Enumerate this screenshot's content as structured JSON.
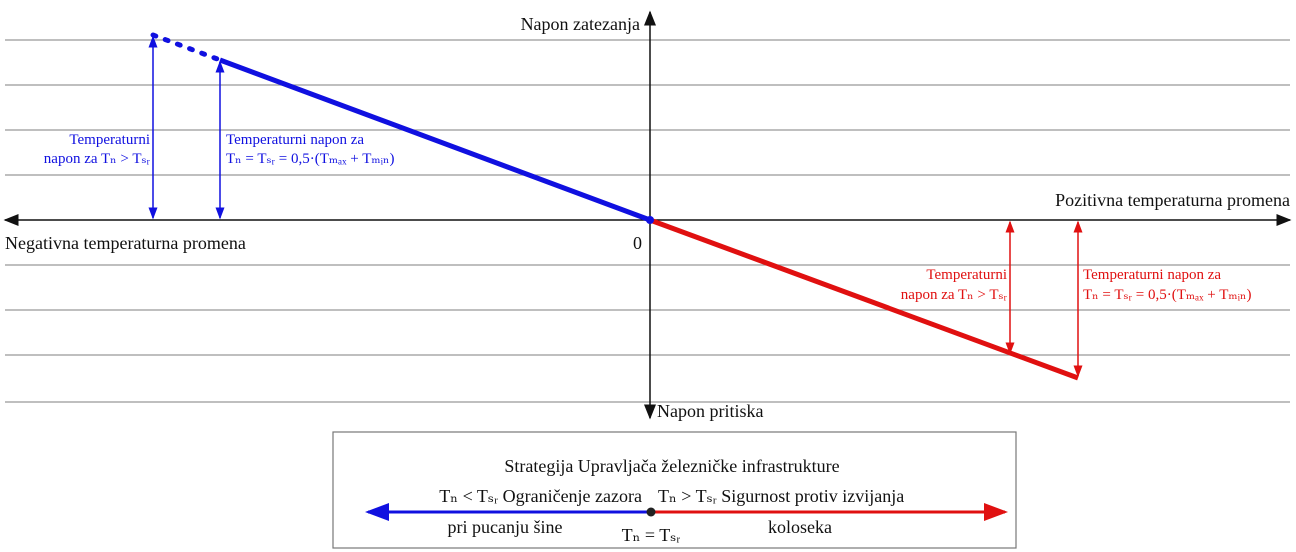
{
  "axes": {
    "y_top": "Napon zatezanja",
    "y_bottom": "Napon pritiska",
    "x_right": "Pozitivna temperaturna promena",
    "x_left": "Negativna temperaturna promena",
    "origin": "0"
  },
  "blue_labels": {
    "left": [
      "Temperaturni",
      "napon za Tₙ > Tₛᵣ"
    ],
    "right": [
      "Temperaturni napon za",
      "Tₙ = Tₛᵣ = 0,5·(Tₘₐₓ + Tₘᵢₙ)"
    ]
  },
  "red_labels": {
    "left": [
      "Temperaturni",
      "napon za Tₙ > Tₛᵣ"
    ],
    "right": [
      "Temperaturni napon za",
      "Tₙ = Tₛᵣ = 0,5·(Tₘₐₓ + Tₘᵢₙ)"
    ]
  },
  "legend": {
    "title": "Strategija Upravljača železničke infrastrukture",
    "left": [
      "Tₙ < Tₛᵣ Ograničenje zazora",
      "pri pucanju šine"
    ],
    "right": [
      "Tₙ > Tₛᵣ Sigurnost protiv izvijanja",
      "koloseka"
    ],
    "center": "Tₙ = Tₛᵣ"
  }
}
